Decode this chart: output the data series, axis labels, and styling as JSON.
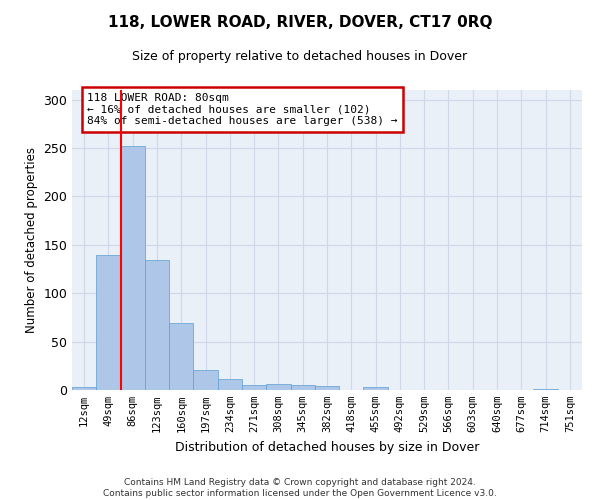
{
  "title": "118, LOWER ROAD, RIVER, DOVER, CT17 0RQ",
  "subtitle": "Size of property relative to detached houses in Dover",
  "xlabel": "Distribution of detached houses by size in Dover",
  "ylabel": "Number of detached properties",
  "categories": [
    "12sqm",
    "49sqm",
    "86sqm",
    "123sqm",
    "160sqm",
    "197sqm",
    "234sqm",
    "271sqm",
    "308sqm",
    "345sqm",
    "382sqm",
    "418sqm",
    "455sqm",
    "492sqm",
    "529sqm",
    "566sqm",
    "603sqm",
    "640sqm",
    "677sqm",
    "714sqm",
    "751sqm"
  ],
  "values": [
    3,
    139,
    252,
    134,
    69,
    21,
    11,
    5,
    6,
    5,
    4,
    0,
    3,
    0,
    0,
    0,
    0,
    0,
    0,
    1,
    0
  ],
  "bar_color": "#aec6e8",
  "bar_edge_color": "#5a9fd4",
  "red_line_x": 1.5,
  "annotation_title": "118 LOWER ROAD: 80sqm",
  "annotation_line1": "← 16% of detached houses are smaller (102)",
  "annotation_line2": "84% of semi-detached houses are larger (538) →",
  "annotation_box_color": "#ffffff",
  "annotation_box_edge": "#cc0000",
  "grid_color": "#d0d8e8",
  "background_color": "#eaf0f8",
  "footer": "Contains HM Land Registry data © Crown copyright and database right 2024.\nContains public sector information licensed under the Open Government Licence v3.0.",
  "ylim": [
    0,
    310
  ],
  "yticks": [
    0,
    50,
    100,
    150,
    200,
    250,
    300
  ]
}
